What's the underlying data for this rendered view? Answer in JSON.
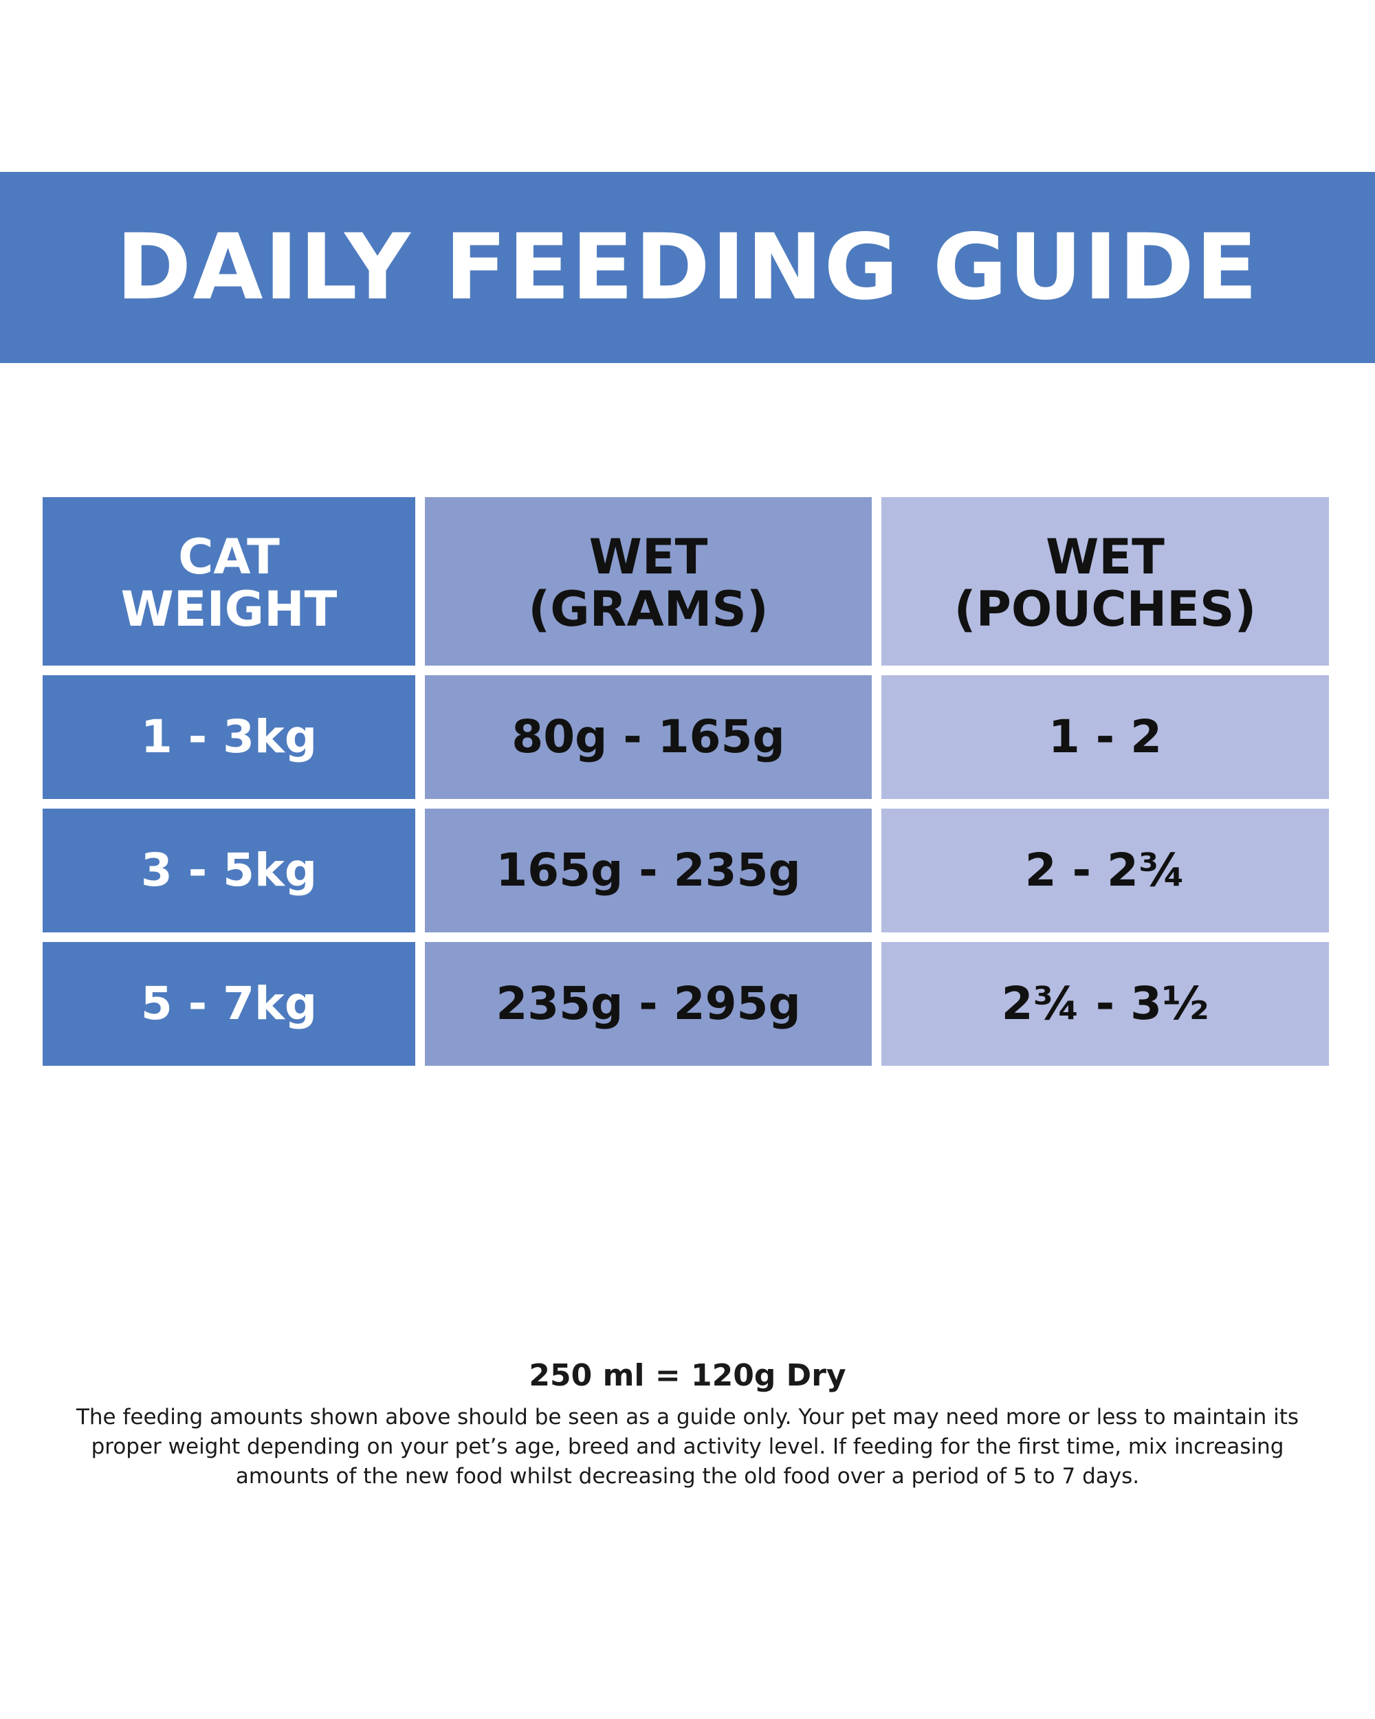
{
  "title": "DAILY FEEDING GUIDE",
  "table": {
    "headers": [
      [
        "CAT",
        "WEIGHT"
      ],
      [
        "WET",
        "(GRAMS)"
      ],
      [
        "WET",
        "(POUCHES)"
      ]
    ],
    "rows": [
      [
        "1 - 3kg",
        "80g - 165g",
        "1 - 2"
      ],
      [
        "3 - 5kg",
        "165g - 235g",
        "2 - 2¾"
      ],
      [
        "5 - 7kg",
        "235g - 295g",
        "2¾ - 3½"
      ]
    ]
  },
  "footer": {
    "heading": "250 ml = 120g Dry",
    "note": "The feeding amounts shown above should be seen as a guide only. Your pet may need more or less to maintain its proper weight depending on your pet’s age, breed and activity level. If feeding for the first time, mix increasing amounts of the new food whilst decreasing the old food over a period of 5 to 7 days."
  },
  "colors": {
    "banner": "#4e7bbf",
    "column_weight": "#4e7bbf",
    "column_grams": "#8a9ccd",
    "column_pouches": "#b4bce1"
  }
}
